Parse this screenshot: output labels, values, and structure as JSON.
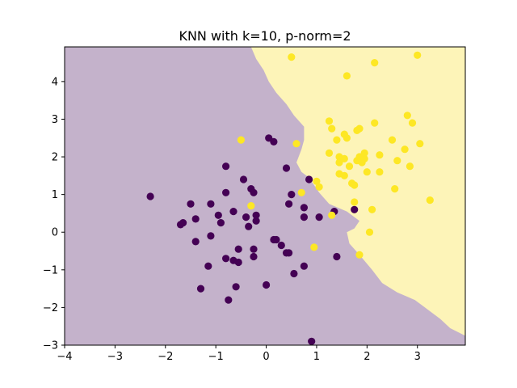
{
  "chart_data": {
    "type": "scatter",
    "title": "KNN with k=10, p-norm=2",
    "xlabel": "",
    "ylabel": "",
    "xlim": [
      -4,
      3.95
    ],
    "ylim": [
      -3,
      4.92
    ],
    "xticks": [
      -4,
      -3,
      -2,
      -1,
      0,
      1,
      2,
      3
    ],
    "xtick_labels": [
      "−4",
      "−3",
      "−2",
      "−1",
      "0",
      "1",
      "2",
      "3"
    ],
    "yticks": [
      -3,
      -2,
      -1,
      0,
      1,
      2,
      3,
      4
    ],
    "ytick_labels": [
      "−3",
      "−2",
      "−1",
      "0",
      "1",
      "2",
      "3",
      "4"
    ],
    "grid": false,
    "legend": "none",
    "colors": {
      "class_0_point": "#440154",
      "class_1_point": "#fde725",
      "class_0_region": "#c4b2cb",
      "class_1_region": "#fdf4b8"
    },
    "decision_boundary": [
      [
        -0.3,
        4.92
      ],
      [
        -0.2,
        4.6
      ],
      [
        -0.05,
        4.3
      ],
      [
        0.05,
        4.0
      ],
      [
        0.2,
        3.7
      ],
      [
        0.4,
        3.4
      ],
      [
        0.55,
        3.1
      ],
      [
        0.75,
        2.8
      ],
      [
        0.75,
        2.45
      ],
      [
        0.7,
        2.2
      ],
      [
        0.6,
        1.85
      ],
      [
        0.7,
        1.6
      ],
      [
        0.85,
        1.45
      ],
      [
        0.95,
        1.25
      ],
      [
        1.05,
        1.05
      ],
      [
        1.25,
        0.75
      ],
      [
        1.6,
        0.55
      ],
      [
        1.85,
        0.3
      ],
      [
        1.75,
        0.1
      ],
      [
        1.6,
        0.0
      ],
      [
        1.65,
        -0.3
      ],
      [
        1.85,
        -0.6
      ],
      [
        2.1,
        -1.0
      ],
      [
        2.3,
        -1.35
      ],
      [
        2.6,
        -1.6
      ],
      [
        2.95,
        -1.8
      ],
      [
        3.2,
        -2.05
      ],
      [
        3.45,
        -2.3
      ],
      [
        3.65,
        -2.55
      ],
      [
        3.95,
        -2.75
      ]
    ],
    "series": [
      {
        "class": 0,
        "points": [
          [
            -2.3,
            0.95
          ],
          [
            -1.7,
            0.2
          ],
          [
            -1.65,
            0.25
          ],
          [
            -1.5,
            0.75
          ],
          [
            -1.4,
            0.35
          ],
          [
            -1.4,
            -0.25
          ],
          [
            -1.3,
            -1.5
          ],
          [
            -1.1,
            0.75
          ],
          [
            -1.1,
            -0.1
          ],
          [
            -1.15,
            -0.9
          ],
          [
            -0.95,
            0.45
          ],
          [
            -0.9,
            0.25
          ],
          [
            -0.8,
            1.75
          ],
          [
            -0.8,
            1.05
          ],
          [
            -0.8,
            -0.7
          ],
          [
            -0.75,
            -1.8
          ],
          [
            -0.65,
            0.55
          ],
          [
            -0.65,
            -0.75
          ],
          [
            -0.6,
            -1.45
          ],
          [
            -0.55,
            -0.45
          ],
          [
            -0.55,
            -0.8
          ],
          [
            -0.45,
            1.4
          ],
          [
            -0.4,
            0.4
          ],
          [
            -0.35,
            0.15
          ],
          [
            -0.3,
            1.15
          ],
          [
            -0.25,
            1.05
          ],
          [
            -0.25,
            -0.45
          ],
          [
            -0.25,
            -0.65
          ],
          [
            -0.2,
            0.3
          ],
          [
            -0.2,
            0.45
          ],
          [
            0.0,
            -1.4
          ],
          [
            0.05,
            2.5
          ],
          [
            0.15,
            2.4
          ],
          [
            0.15,
            -0.2
          ],
          [
            0.2,
            -0.2
          ],
          [
            0.3,
            -0.35
          ],
          [
            0.4,
            1.7
          ],
          [
            0.4,
            -0.55
          ],
          [
            0.45,
            -0.55
          ],
          [
            0.45,
            0.75
          ],
          [
            0.5,
            1.0
          ],
          [
            0.55,
            -1.1
          ],
          [
            0.75,
            0.65
          ],
          [
            0.75,
            0.4
          ],
          [
            0.75,
            -0.9
          ],
          [
            0.85,
            1.4
          ],
          [
            0.9,
            -2.9
          ],
          [
            1.05,
            0.4
          ],
          [
            1.35,
            0.55
          ],
          [
            1.4,
            -0.65
          ],
          [
            1.75,
            0.6
          ]
        ]
      },
      {
        "class": 1,
        "points": [
          [
            -0.5,
            2.45
          ],
          [
            -0.3,
            0.7
          ],
          [
            0.5,
            4.65
          ],
          [
            0.6,
            2.35
          ],
          [
            0.7,
            1.05
          ],
          [
            0.95,
            -0.4
          ],
          [
            1.0,
            1.35
          ],
          [
            1.05,
            1.2
          ],
          [
            1.25,
            2.1
          ],
          [
            1.25,
            2.95
          ],
          [
            1.3,
            2.75
          ],
          [
            1.3,
            0.45
          ],
          [
            1.4,
            2.45
          ],
          [
            1.45,
            2.0
          ],
          [
            1.45,
            1.55
          ],
          [
            1.45,
            1.85
          ],
          [
            1.55,
            2.6
          ],
          [
            1.55,
            1.95
          ],
          [
            1.55,
            1.5
          ],
          [
            1.6,
            2.5
          ],
          [
            1.6,
            4.15
          ],
          [
            1.65,
            1.75
          ],
          [
            1.7,
            1.3
          ],
          [
            1.75,
            1.25
          ],
          [
            1.75,
            0.8
          ],
          [
            1.8,
            2.7
          ],
          [
            1.8,
            1.9
          ],
          [
            1.85,
            2.75
          ],
          [
            1.85,
            2.0
          ],
          [
            1.85,
            -0.6
          ],
          [
            1.9,
            1.85
          ],
          [
            1.95,
            1.95
          ],
          [
            1.95,
            2.1
          ],
          [
            2.0,
            1.6
          ],
          [
            2.05,
            0.0
          ],
          [
            2.1,
            0.6
          ],
          [
            2.15,
            4.5
          ],
          [
            2.15,
            2.9
          ],
          [
            2.25,
            1.6
          ],
          [
            2.25,
            2.05
          ],
          [
            2.5,
            2.45
          ],
          [
            2.55,
            1.15
          ],
          [
            2.6,
            1.9
          ],
          [
            2.75,
            2.2
          ],
          [
            2.8,
            3.1
          ],
          [
            2.85,
            1.75
          ],
          [
            2.9,
            2.9
          ],
          [
            3.0,
            4.7
          ],
          [
            3.05,
            2.35
          ],
          [
            3.25,
            0.85
          ]
        ]
      }
    ]
  }
}
